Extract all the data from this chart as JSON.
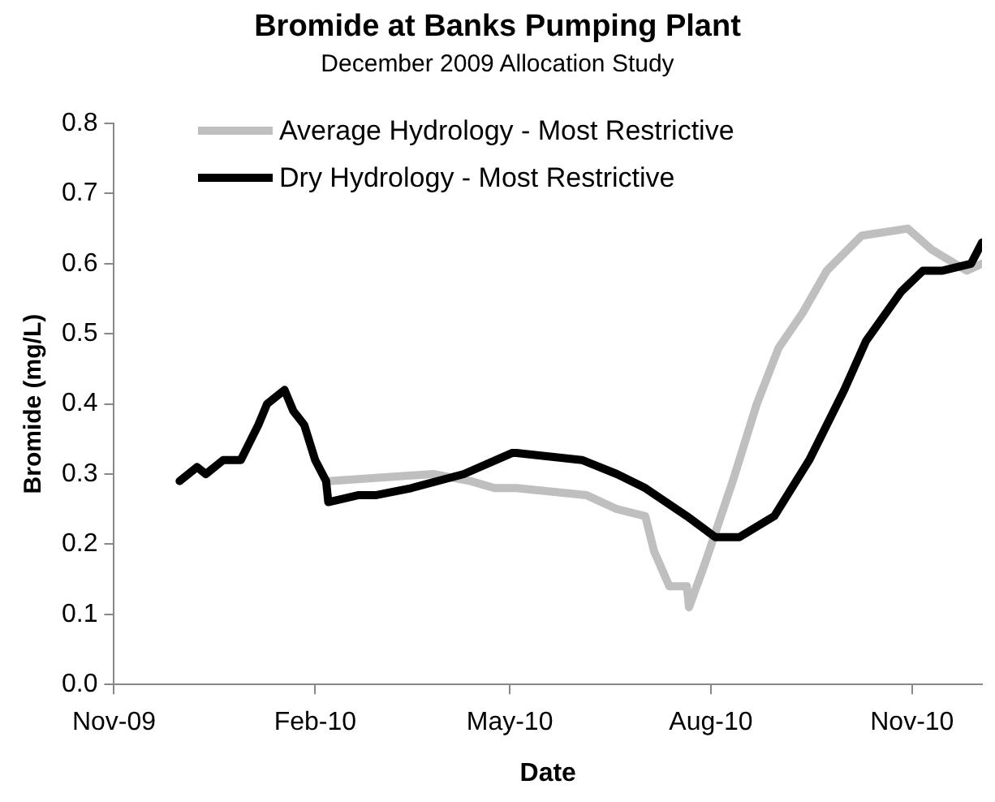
{
  "chart_data": {
    "type": "line",
    "title": "Bromide at Banks Pumping Plant",
    "subtitle": "December 2009 Allocation Study",
    "xlabel": "Date",
    "ylabel": "Bromide (mg/L)",
    "series": [
      {
        "name": "Average Hydrology - Most Restrictive",
        "color": "#bfbfbf",
        "x": [
          "2010-02-07",
          "2010-03-27",
          "2010-04-13",
          "2010-04-24",
          "2010-05-04",
          "2010-06-05",
          "2010-06-19",
          "2010-07-02",
          "2010-07-06",
          "2010-07-13",
          "2010-07-21",
          "2010-07-22",
          "2010-07-29",
          "2010-08-11",
          "2010-08-22",
          "2010-09-01",
          "2010-09-12",
          "2010-09-23",
          "2010-10-09",
          "2010-10-30",
          "2010-11-10",
          "2010-11-26",
          "2010-12-03"
        ],
        "values": [
          0.29,
          0.3,
          0.29,
          0.28,
          0.28,
          0.27,
          0.25,
          0.24,
          0.19,
          0.14,
          0.14,
          0.11,
          0.17,
          0.29,
          0.4,
          0.48,
          0.53,
          0.59,
          0.64,
          0.65,
          0.62,
          0.59,
          0.6
        ]
      },
      {
        "name": "Dry Hydrology - Most Restrictive",
        "color": "#000000",
        "x": [
          "2009-12-01",
          "2009-12-09",
          "2009-12-13",
          "2009-12-21",
          "2009-12-29",
          "2010-01-06",
          "2010-01-10",
          "2010-01-18",
          "2010-01-22",
          "2010-01-27",
          "2010-02-01",
          "2010-02-06",
          "2010-02-07",
          "2010-02-21",
          "2010-03-01",
          "2010-03-17",
          "2010-04-10",
          "2010-05-02",
          "2010-05-04",
          "2010-06-03",
          "2010-06-19",
          "2010-07-02",
          "2010-07-21",
          "2010-08-03",
          "2010-08-14",
          "2010-08-30",
          "2010-09-15",
          "2010-10-01",
          "2010-10-11",
          "2010-10-27",
          "2010-11-06",
          "2010-11-15",
          "2010-11-28",
          "2010-12-03"
        ],
        "values": [
          0.29,
          0.31,
          0.3,
          0.32,
          0.32,
          0.37,
          0.4,
          0.42,
          0.39,
          0.37,
          0.32,
          0.29,
          0.26,
          0.27,
          0.27,
          0.28,
          0.3,
          0.33,
          0.33,
          0.32,
          0.3,
          0.28,
          0.24,
          0.21,
          0.21,
          0.24,
          0.32,
          0.42,
          0.49,
          0.56,
          0.59,
          0.59,
          0.6,
          0.63
        ]
      }
    ],
    "xlim": [
      "2009-11-01",
      "2010-12-03"
    ],
    "xticks": [
      {
        "value": "2009-11-01",
        "label": "Nov-09"
      },
      {
        "value": "2010-02-01",
        "label": "Feb-10"
      },
      {
        "value": "2010-05-01",
        "label": "May-10"
      },
      {
        "value": "2010-08-01",
        "label": "Aug-10"
      },
      {
        "value": "2010-11-01",
        "label": "Nov-10"
      }
    ],
    "ylim": [
      0,
      0.8
    ],
    "yticks": [
      {
        "value": 0,
        "label": "0.0"
      },
      0.1,
      0.2,
      0.3,
      0.4,
      0.5,
      0.6,
      0.7,
      0.8
    ],
    "grid": false,
    "legend": "top left",
    "marker": "none",
    "line_style": "solid"
  }
}
